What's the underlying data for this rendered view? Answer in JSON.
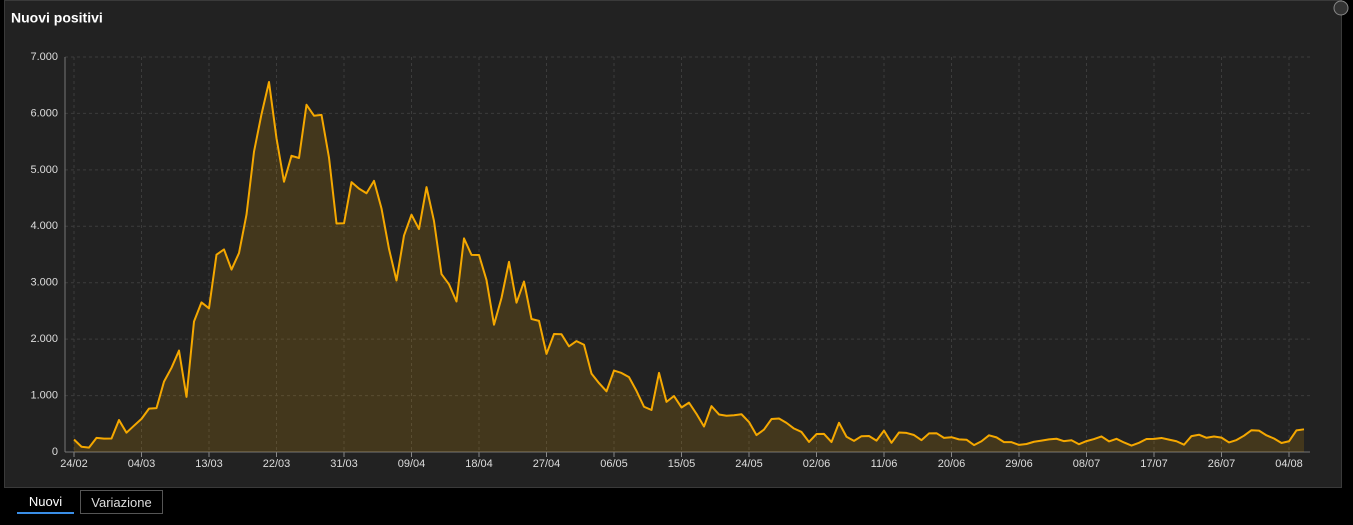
{
  "chart_data": {
    "type": "line",
    "title": "Nuovi positivi",
    "color": "#f5a800",
    "grid": true,
    "categories": [
      "24/02",
      null,
      null,
      null,
      null,
      null,
      null,
      null,
      null,
      "04/03",
      null,
      null,
      null,
      null,
      null,
      null,
      null,
      null,
      "13/03",
      null,
      null,
      null,
      null,
      null,
      null,
      null,
      null,
      "22/03",
      null,
      null,
      null,
      null,
      null,
      null,
      null,
      null,
      "31/03",
      null,
      null,
      null,
      null,
      null,
      null,
      null,
      null,
      "09/04",
      null,
      null,
      null,
      null,
      null,
      null,
      null,
      null,
      "18/04",
      null,
      null,
      null,
      null,
      null,
      null,
      null,
      null,
      "27/04",
      null,
      null,
      null,
      null,
      null,
      null,
      null,
      null,
      "06/05",
      null,
      null,
      null,
      null,
      null,
      null,
      null,
      null,
      "15/05",
      null,
      null,
      null,
      null,
      null,
      null,
      null,
      null,
      "24/05",
      null,
      null,
      null,
      null,
      null,
      null,
      null,
      null,
      "02/06",
      null,
      null,
      null,
      null,
      null,
      null,
      null,
      null,
      "11/06",
      null,
      null,
      null,
      null,
      null,
      null,
      null,
      null,
      "20/06",
      null,
      null,
      null,
      null,
      null,
      null,
      null,
      null,
      "29/06",
      null,
      null,
      null,
      null,
      null,
      null,
      null,
      null,
      "08/07",
      null,
      null,
      null,
      null,
      null,
      null,
      null,
      null,
      "17/07",
      null,
      null,
      null,
      null,
      null,
      null,
      null,
      null,
      "26/07",
      null,
      null,
      null,
      null,
      null,
      null,
      null,
      null,
      "04/08",
      null,
      null
    ],
    "values": [
      221,
      93,
      78,
      250,
      238,
      240,
      566,
      342,
      466,
      587,
      769,
      778,
      1247,
      1492,
      1797,
      977,
      2313,
      2651,
      2547,
      3497,
      3590,
      3233,
      3526,
      4207,
      5322,
      5986,
      6557,
      5560,
      4789,
      5249,
      5210,
      6153,
      5959,
      5974,
      5217,
      4050,
      4053,
      4782,
      4668,
      4585,
      4805,
      4316,
      3599,
      3039,
      3836,
      4204,
      3951,
      4694,
      4092,
      3153,
      2972,
      2667,
      3786,
      3493,
      3491,
      3047,
      2256,
      2729,
      3370,
      2646,
      3021,
      2357,
      2324,
      1739,
      2091,
      2086,
      1872,
      1965,
      1900,
      1389,
      1221,
      1075,
      1444,
      1401,
      1327,
      1083,
      802,
      744,
      1402,
      888,
      992,
      789,
      875,
      675,
      451,
      813,
      665,
      642,
      652,
      669,
      531,
      300,
      397,
      584,
      593,
      516,
      416,
      355,
      178,
      318,
      321,
      177,
      518,
      270,
      197,
      280,
      283,
      202,
      379,
      163,
      346,
      338,
      301,
      210,
      329,
      333,
      251,
      262,
      224,
      218,
      122,
      190,
      296,
      259,
      175,
      174,
      126,
      142,
      182,
      201,
      223,
      235,
      192,
      208,
      138,
      193,
      229,
      276,
      188,
      234,
      169,
      114,
      163,
      230,
      233,
      249,
      219,
      190,
      129,
      282,
      306,
      252,
      275,
      255,
      170,
      212,
      289,
      386,
      379,
      295,
      239,
      159,
      190,
      384,
      402
    ],
    "ylim": [
      0,
      7000
    ],
    "yticks": [
      0,
      {
        "value": 1000,
        "label": "1.000"
      },
      {
        "value": 2000,
        "label": "2.000"
      },
      {
        "value": 3000,
        "label": "3.000"
      },
      {
        "value": 4000,
        "label": "4.000"
      },
      {
        "value": 5000,
        "label": "5.000"
      },
      {
        "value": 6000,
        "label": "6.000"
      },
      {
        "value": 7000,
        "label": "7.000"
      }
    ]
  },
  "tabs": [
    "Nuovi",
    "Variazione"
  ]
}
